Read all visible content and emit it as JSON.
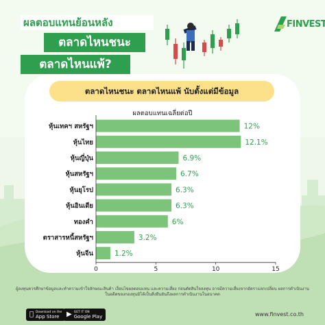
{
  "header": {
    "line1": "ผลตอบแทนย้อนหลัง",
    "line2": "ตลาดไหนชนะ",
    "line3": "ตลาดไหนแพ้?"
  },
  "brand": {
    "logo_text": "FINVEST",
    "website": "www.finvest.co.th"
  },
  "subtitle": "ตลาดไหนชนะ ตลาดไหนแพ้  นับตั้งแต่มีข้อมูล",
  "colors": {
    "accent": "#2e9f4e",
    "bar": "#7bc47a",
    "pill": "#fce18a",
    "background": "#e8f5e4"
  },
  "chart_data": {
    "type": "bar",
    "orientation": "horizontal",
    "title": "ผลตอบแทนเฉลี่ยต่อปี",
    "categories": [
      "หุ้นเทคฯ สหรัฐฯ",
      "หุ้นไทย",
      "หุ้นญี่ปุ่น",
      "หุ้นสหรัฐฯ",
      "หุ้นยุโรป",
      "หุ้นอินเดีย",
      "ทองคำ",
      "ตราสารหนี้สหรัฐฯ",
      "หุ้นจีน"
    ],
    "values": [
      12,
      12.1,
      6.9,
      6.7,
      6.3,
      6.3,
      6,
      3.2,
      1.2
    ],
    "value_labels": [
      "12%",
      "12.1%",
      "6.9%",
      "6.7%",
      "6.3%",
      "6.3%",
      "6%",
      "3.2%",
      "1.2%"
    ],
    "xlim": [
      0,
      15
    ],
    "xticks": [
      "0",
      "5",
      "10",
      "15"
    ],
    "grid": false
  },
  "footer": {
    "disclaimer": "ผู้ลงทุนควรศึกษาข้อมูลและทำความเข้าใจลักษณะสินค้า เงื่อนไขผลตอบแทน และความเสี่ยง ก่อนตัดสินใจลงทุน อาจมีความเสี่ยงจากอัตราแลกเปลี่ยน ผลการดำเนินงานในอดีตของกองทุนมิได้เป็นสิ่งยืนยันถึงผลการดำเนินงานในอนาคต",
    "app_store": {
      "small": "Download on the",
      "big": "App Store"
    },
    "google_play": {
      "small": "GET IT ON",
      "big": "Google Play"
    }
  }
}
